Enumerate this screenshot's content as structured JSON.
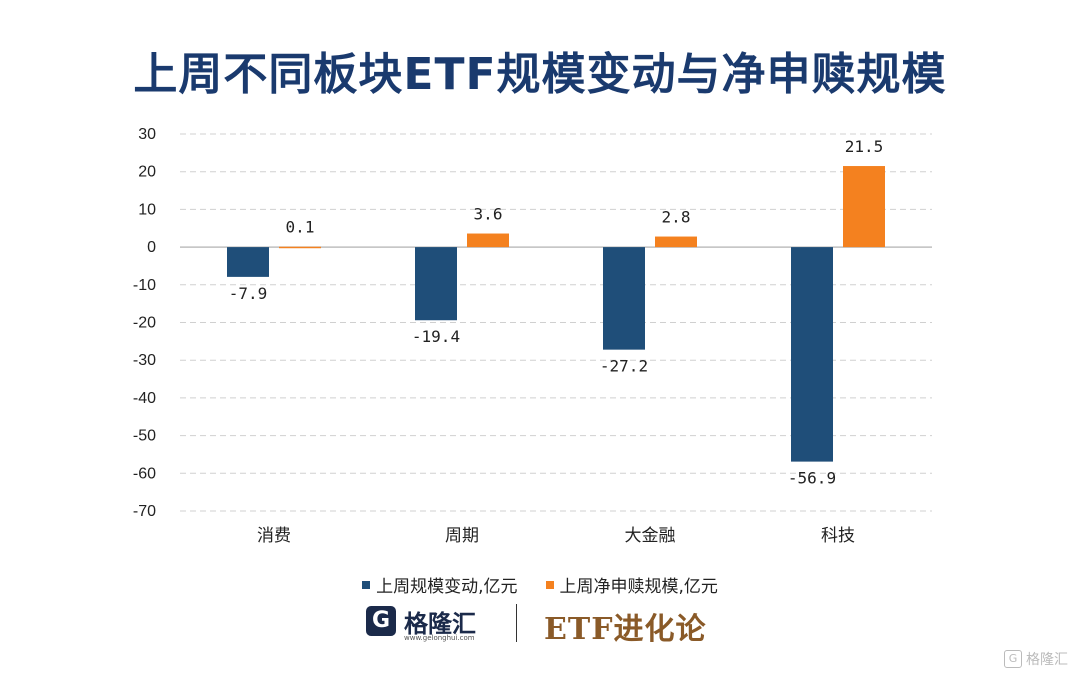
{
  "title": "上周不同板块ETF规模变动与净申赎规模",
  "chart_data": {
    "type": "bar",
    "categories": [
      "消费",
      "周期",
      "大金融",
      "科技"
    ],
    "series": [
      {
        "name": "上周规模变动,亿元",
        "color": "#1f4e79",
        "values": [
          -7.9,
          -19.4,
          -27.2,
          -56.9
        ]
      },
      {
        "name": "上周净申赎规模,亿元",
        "color": "#f4811f",
        "values": [
          0.1,
          3.6,
          2.8,
          21.5
        ]
      }
    ],
    "ylim": [
      -70,
      30
    ],
    "yticks": [
      30,
      20,
      10,
      0,
      -10,
      -20,
      -30,
      -40,
      -50,
      -60,
      -70
    ],
    "grid": true,
    "legend": "bottom"
  },
  "footer": {
    "logo_mark": "G",
    "logo_name": "格隆汇",
    "logo_url": "www.gelonghui.com",
    "brand": "ETF进化论"
  },
  "watermark": {
    "icon": "G",
    "text": "格隆汇"
  }
}
